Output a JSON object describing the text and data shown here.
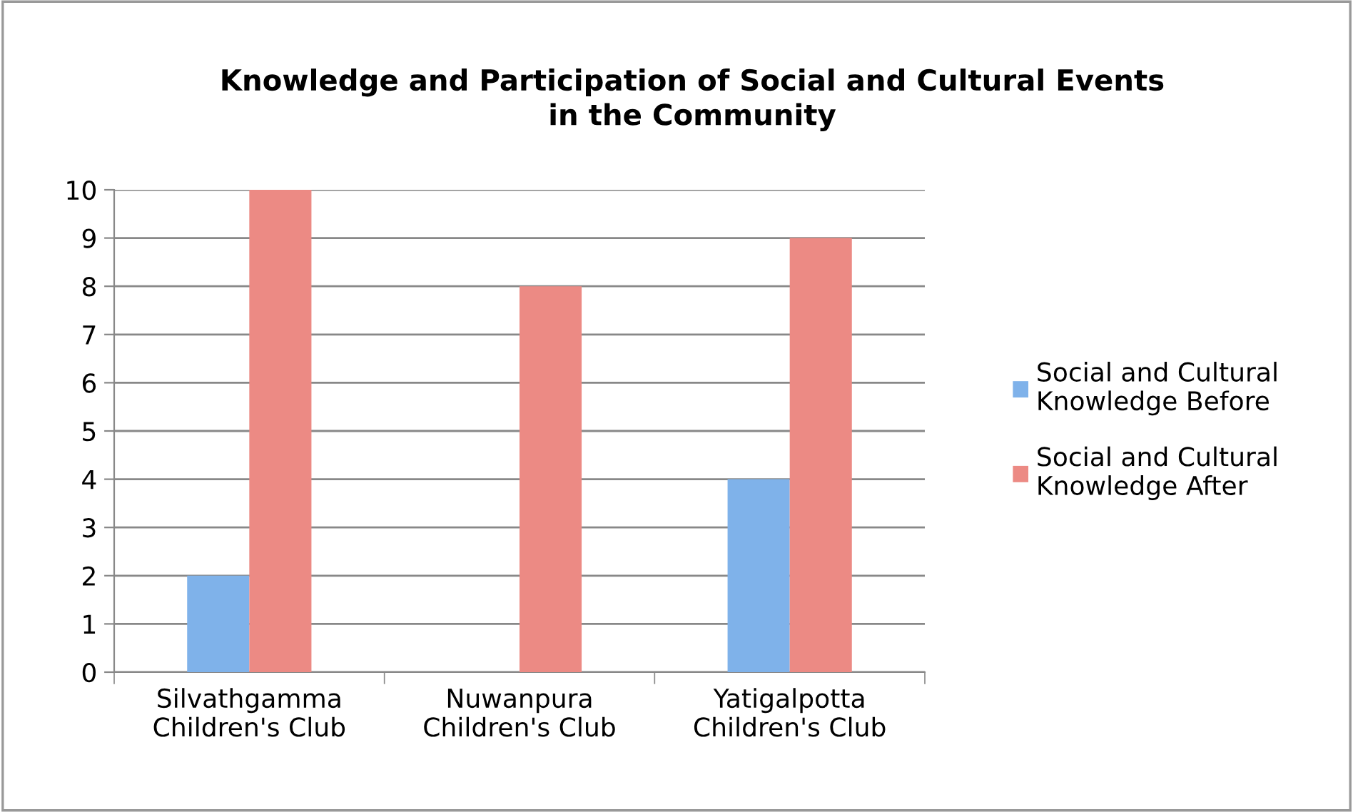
{
  "chart_data": {
    "type": "bar",
    "title": "Knowledge and Participation of Social and Cultural Events\nin the Community",
    "categories": [
      "Silvathgamma\nChildren's Club",
      "Nuwanpura\nChildren's Club",
      "Yatigalpotta\nChildren's Club"
    ],
    "series": [
      {
        "name": "Social and Cultural\nKnowledge Before",
        "color": "#7fb2ea",
        "values": [
          2,
          0,
          4
        ]
      },
      {
        "name": "Social and Cultural\nKnowledge After",
        "color": "#ec8a84",
        "values": [
          10,
          8,
          9
        ]
      }
    ],
    "ylim": [
      0,
      10
    ],
    "yticks": [
      0,
      1,
      2,
      3,
      4,
      5,
      6,
      7,
      8,
      9,
      10
    ],
    "grid": "y",
    "legend": "right"
  }
}
